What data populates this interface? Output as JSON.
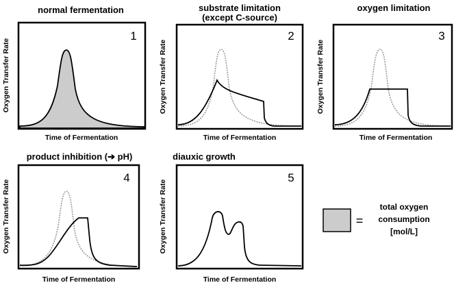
{
  "panels": [
    {
      "title": "normal fermentation",
      "number": "1",
      "ylabel": "Oxygen Transfer Rate",
      "xlabel": "Time of Fermentation"
    },
    {
      "title": "substrate limitation",
      "title2": "(except C-source)",
      "number": "2",
      "ylabel": "Oxygen Transfer Rate",
      "xlabel": "Time of Fermentation"
    },
    {
      "title": "oxygen limitation",
      "number": "3",
      "ylabel": "Oxygen Transfer Rate",
      "xlabel": "Time of Fermentation"
    },
    {
      "title": "product  inhibition (➔ pH)",
      "number": "4",
      "ylabel": "Oxygen Transfer Rate",
      "xlabel": "Time of Fermentation"
    },
    {
      "title": "diauxic growth",
      "number": "5",
      "ylabel": "Oxygen Transfer Rate",
      "xlabel": "Time of Fermentation"
    }
  ],
  "legend": {
    "symbol": "=",
    "lines": [
      "total oxygen",
      "consumption",
      "[mol/L]"
    ],
    "fill_color": "#cccccc"
  },
  "colors": {
    "reference_curve": "#999999",
    "curve": "#000000"
  }
}
